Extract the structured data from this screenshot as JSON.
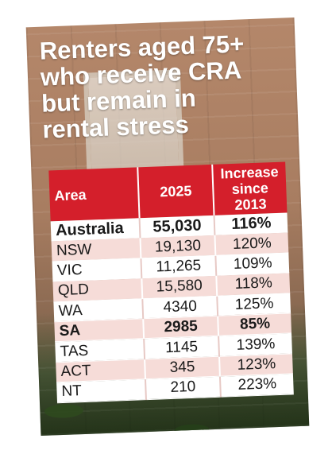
{
  "title_lines": [
    "Renters aged 75+",
    "who receive CRA",
    "but remain in",
    "rental stress"
  ],
  "colors": {
    "header": "#d41f2b",
    "stripe": "#f6dcd8",
    "text": "#1a1a1a"
  },
  "chart_data": {
    "type": "table",
    "title": "Renters aged 75+ who receive CRA but remain in rental stress",
    "columns": [
      "Area",
      "2025",
      "Increase since 2013"
    ],
    "header_lines": {
      "increase": [
        "Increase",
        "since",
        "2013"
      ]
    },
    "rows": [
      {
        "area": "Australia",
        "value_2025": "55,030",
        "increase": "116%",
        "bold": true
      },
      {
        "area": "NSW",
        "value_2025": "19,130",
        "increase": "120%",
        "bold": false
      },
      {
        "area": "VIC",
        "value_2025": "11,265",
        "increase": "109%",
        "bold": false
      },
      {
        "area": "QLD",
        "value_2025": "15,580",
        "increase": "118%",
        "bold": false
      },
      {
        "area": "WA",
        "value_2025": "4340",
        "increase": "125%",
        "bold": false
      },
      {
        "area": "SA",
        "value_2025": "2985",
        "increase": "85%",
        "bold": true
      },
      {
        "area": "TAS",
        "value_2025": "1145",
        "increase": "139%",
        "bold": false
      },
      {
        "area": "ACT",
        "value_2025": "345",
        "increase": "123%",
        "bold": false
      },
      {
        "area": "NT",
        "value_2025": "210",
        "increase": "223%",
        "bold": false
      }
    ]
  }
}
